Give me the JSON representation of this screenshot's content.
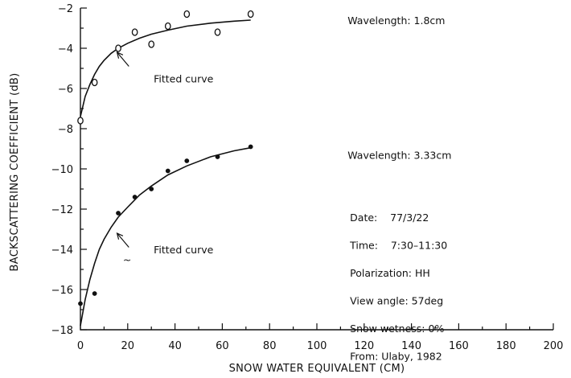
{
  "chart_data": {
    "type": "scatter",
    "xlabel": "SNOW WATER EQUIVALENT (CM)",
    "ylabel": "BACKSCATTERING COEFFICIENT (dB)",
    "xlim": [
      0,
      200
    ],
    "ylim": [
      -18,
      -2
    ],
    "x_ticks": [
      0,
      20,
      40,
      60,
      80,
      100,
      120,
      140,
      160,
      180,
      200
    ],
    "y_ticks": [
      -2,
      -4,
      -6,
      -8,
      -10,
      -12,
      -14,
      -16,
      -18
    ],
    "grid": false,
    "series": [
      {
        "name": "Wavelength: 1.8cm",
        "marker": "open-circle",
        "points": [
          [
            0,
            -7.6
          ],
          [
            6,
            -5.7
          ],
          [
            16,
            -4.0
          ],
          [
            23,
            -3.2
          ],
          [
            30,
            -3.8
          ],
          [
            37,
            -2.9
          ],
          [
            45,
            -2.3
          ],
          [
            58,
            -3.2
          ],
          [
            72,
            -2.3
          ]
        ],
        "fitted_curve": [
          [
            0,
            -7.4
          ],
          [
            2,
            -6.4
          ],
          [
            4,
            -5.8
          ],
          [
            6,
            -5.3
          ],
          [
            8,
            -4.9
          ],
          [
            10,
            -4.6
          ],
          [
            13,
            -4.25
          ],
          [
            16,
            -4.0
          ],
          [
            20,
            -3.75
          ],
          [
            25,
            -3.5
          ],
          [
            30,
            -3.3
          ],
          [
            37,
            -3.1
          ],
          [
            45,
            -2.9
          ],
          [
            55,
            -2.75
          ],
          [
            65,
            -2.65
          ],
          [
            72,
            -2.6
          ]
        ]
      },
      {
        "name": "Wavelength: 3.33cm",
        "marker": "filled-dot",
        "points": [
          [
            0,
            -16.7
          ],
          [
            6,
            -16.2
          ],
          [
            16,
            -12.2
          ],
          [
            23,
            -11.4
          ],
          [
            30,
            -11.0
          ],
          [
            37,
            -10.1
          ],
          [
            45,
            -9.6
          ],
          [
            58,
            -9.4
          ],
          [
            72,
            -8.9
          ]
        ],
        "fitted_curve": [
          [
            0,
            -17.8
          ],
          [
            2,
            -16.5
          ],
          [
            4,
            -15.5
          ],
          [
            6,
            -14.7
          ],
          [
            8,
            -14.0
          ],
          [
            10,
            -13.5
          ],
          [
            13,
            -12.9
          ],
          [
            16,
            -12.4
          ],
          [
            20,
            -11.9
          ],
          [
            25,
            -11.3
          ],
          [
            30,
            -10.85
          ],
          [
            37,
            -10.3
          ],
          [
            45,
            -9.85
          ],
          [
            55,
            -9.4
          ],
          [
            65,
            -9.1
          ],
          [
            72,
            -8.95
          ]
        ]
      }
    ],
    "annotations": [
      {
        "text": "Fitted curve",
        "x": 31,
        "y": -5.5
      },
      {
        "text": "Fitted curve",
        "x": 31,
        "y": -14.0
      }
    ],
    "arrows": [
      {
        "from": [
          20.5,
          -4.9
        ],
        "to": [
          15.5,
          -4.2
        ]
      },
      {
        "from": [
          20.5,
          -13.9
        ],
        "to": [
          15.5,
          -13.2
        ]
      }
    ],
    "info_lines": [
      "Date:    77/3/22",
      "Time:    7:30–11:30",
      "Polarization: HH",
      "View angle: 57deg",
      "Snow wetness: 0%",
      "From: Ulaby, 1982"
    ],
    "info_anchor": {
      "x": 114,
      "y": -12.4,
      "line_step": -1.38
    },
    "tilde": {
      "text": "~",
      "x": 18,
      "y": -14.5
    }
  }
}
